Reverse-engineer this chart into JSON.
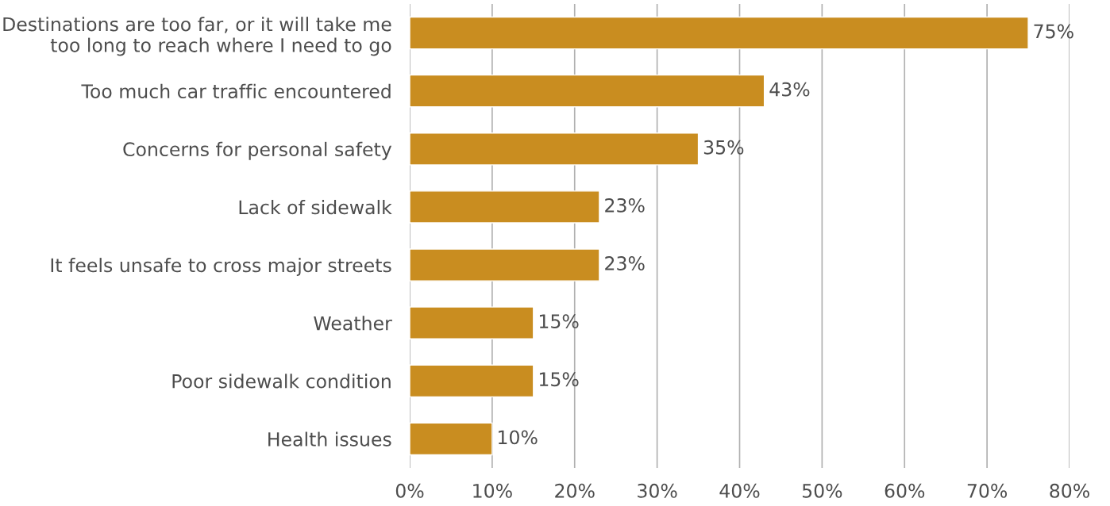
{
  "chart_data": {
    "type": "bar",
    "orientation": "horizontal",
    "categories": [
      "Destinations are too far, or it will take me\ntoo long to reach where I need to go",
      "Too much car traffic encountered",
      "Concerns for personal safety",
      "Lack of sidewalk",
      "It feels unsafe to cross major streets",
      "Weather",
      "Poor sidewalk condition",
      "Health issues"
    ],
    "values": [
      75,
      43,
      35,
      23,
      23,
      15,
      15,
      10
    ],
    "value_labels": [
      "75%",
      "43%",
      "35%",
      "23%",
      "23%",
      "15%",
      "15%",
      "10%"
    ],
    "color": "#c98d20",
    "xlim": [
      0,
      80
    ],
    "xticks": [
      {
        "value": 0,
        "label": "0%"
      },
      {
        "value": 10,
        "label": "10%"
      },
      {
        "value": 20,
        "label": "20%"
      },
      {
        "value": 30,
        "label": "30%"
      },
      {
        "value": 40,
        "label": "40%"
      },
      {
        "value": 50,
        "label": "50%"
      },
      {
        "value": 60,
        "label": "60%"
      },
      {
        "value": 70,
        "label": "70%"
      },
      {
        "value": 80,
        "label": "80%"
      }
    ],
    "grid": "x",
    "legend": false
  }
}
